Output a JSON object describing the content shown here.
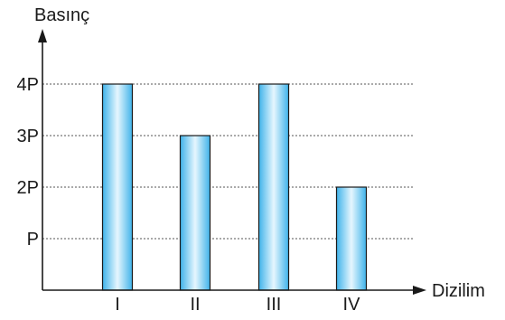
{
  "chart_data": {
    "type": "bar",
    "ylabel": "Basınç",
    "xlabel": "Dizilim",
    "categories": [
      "I",
      "II",
      "III",
      "IV"
    ],
    "values": [
      4,
      3,
      4,
      2
    ],
    "ylim": [
      0,
      4.6
    ],
    "yticks": [
      {
        "value": 1,
        "label": "P"
      },
      {
        "value": 2,
        "label": "2P"
      },
      {
        "value": 3,
        "label": "3P"
      },
      {
        "value": 4,
        "label": "4P"
      }
    ],
    "grid": true,
    "bar_color_edge": "#3fb3ea",
    "bar_color_center": "#e6f6fe"
  }
}
